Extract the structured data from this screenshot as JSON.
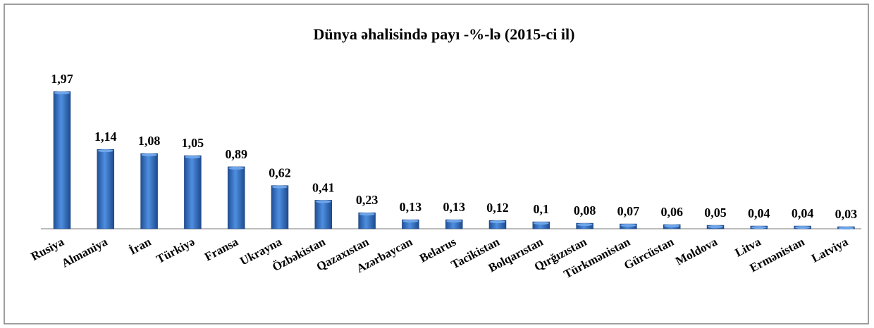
{
  "chart_data": {
    "type": "bar",
    "title": "Dünya əhalisində payı -%-lə (2015-ci il)",
    "categories": [
      "Rusiya",
      "Almaniya",
      "İran",
      "Türkiyə",
      "Fransa",
      "Ukrayna",
      "Özbəkistan",
      "Qazaxıstan",
      "Azərbaycan",
      "Belarus",
      "Tacikistan",
      "Bolqarıstan",
      "Qırğızıstan",
      "Türkmənistan",
      "Gürcüstan",
      "Moldova",
      "Litva",
      "Ermənistan",
      "Latviya"
    ],
    "values": [
      1.97,
      1.14,
      1.08,
      1.05,
      0.89,
      0.62,
      0.41,
      0.23,
      0.13,
      0.13,
      0.12,
      0.1,
      0.08,
      0.07,
      0.06,
      0.05,
      0.04,
      0.04,
      0.03
    ],
    "value_labels": [
      "1,97",
      "1,14",
      "1,08",
      "1,05",
      "0,89",
      "0,62",
      "0,41",
      "0,23",
      "0,13",
      "0,13",
      "0,12",
      "0,1",
      "0,08",
      "0,07",
      "0,06",
      "0,05",
      "0,04",
      "0,04",
      "0,03"
    ],
    "color": "#3a78c9"
  }
}
